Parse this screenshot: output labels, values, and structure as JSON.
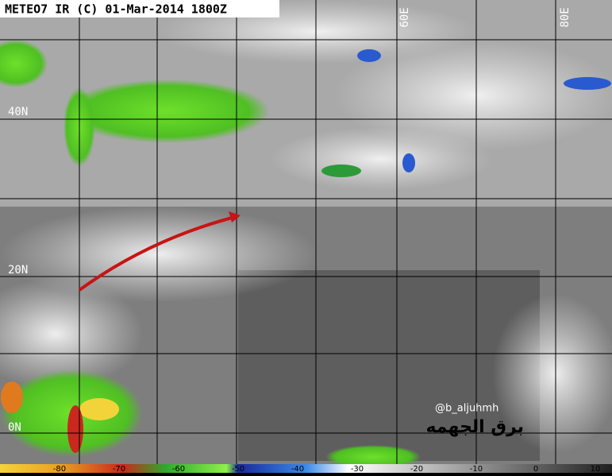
{
  "header": {
    "title": "METEO7 IR (C) 01-Mar-2014 1800Z"
  },
  "map": {
    "lat_labels": [
      "40N",
      "20N",
      "0N"
    ],
    "lon_labels": [
      "60E",
      "80E"
    ]
  },
  "colorbar": {
    "labels": [
      "-80",
      "-70",
      "-60",
      "-50",
      "-40",
      "-30",
      "-20",
      "-10",
      "0",
      "10"
    ]
  },
  "watermark": {
    "handle": "@b_aljuhmh",
    "signature": "برق الجهمه"
  }
}
